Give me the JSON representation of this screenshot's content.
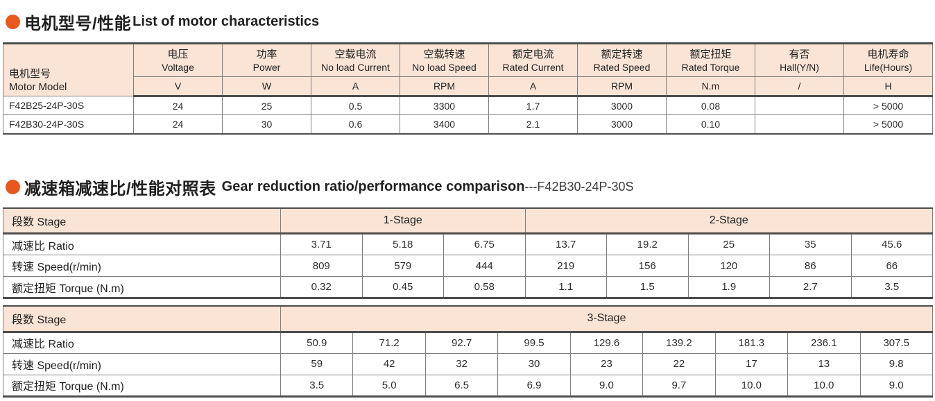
{
  "colors": {
    "accent": "#e8581e",
    "table_header_bg": "#fae4d6",
    "border_dark": "#4d4d4d",
    "border_light": "#7f7f7f"
  },
  "section1": {
    "title_cn": "电机型号/性能",
    "title_en": "List of motor characteristics",
    "table": {
      "row_header": {
        "cn": "电机型号",
        "en": "Motor Model"
      },
      "columns": [
        {
          "cn": "电压",
          "en": "Voltage",
          "unit": "V"
        },
        {
          "cn": "功率",
          "en": "Power",
          "unit": "W"
        },
        {
          "cn": "空载电流",
          "en": "No load Current",
          "unit": "A"
        },
        {
          "cn": "空载转速",
          "en": "No load Speed",
          "unit": "RPM"
        },
        {
          "cn": "额定电流",
          "en": "Rated Current",
          "unit": "A"
        },
        {
          "cn": "额定转速",
          "en": "Rated Speed",
          "unit": "RPM"
        },
        {
          "cn": "额定扭矩",
          "en": "Rated Torque",
          "unit": "N.m"
        },
        {
          "cn": "有否",
          "en": "Hall(Y/N)",
          "unit": "/"
        },
        {
          "cn": "电机寿命",
          "en": "Life(Hours)",
          "unit": "H"
        }
      ],
      "rows": [
        {
          "model": "F42B25-24P-30S",
          "values": [
            "24",
            "25",
            "0.5",
            "3300",
            "1.7",
            "3000",
            "0.08",
            "",
            "> 5000"
          ]
        },
        {
          "model": "F42B30-24P-30S",
          "values": [
            "24",
            "30",
            "0.6",
            "3400",
            "2.1",
            "3000",
            "0.10",
            "",
            "> 5000"
          ]
        }
      ]
    }
  },
  "section2": {
    "title_cn": "减速箱减速比/性能对照表",
    "title_en": "Gear reduction ratio/performance comparison",
    "title_suffix": "---F42B30-24P-30S",
    "tables": [
      {
        "stage_label": "段数 Stage",
        "groups": [
          {
            "label": "1-Stage",
            "span": 3
          },
          {
            "label": "2-Stage",
            "span": 5
          }
        ],
        "rows": [
          {
            "label": "减速比 Ratio",
            "values": [
              "3.71",
              "5.18",
              "6.75",
              "13.7",
              "19.2",
              "25",
              "35",
              "45.6"
            ]
          },
          {
            "label": "转速 Speed(r/min)",
            "values": [
              "809",
              "579",
              "444",
              "219",
              "156",
              "120",
              "86",
              "66"
            ]
          },
          {
            "label": "额定扭矩 Torque (N.m)",
            "values": [
              "0.32",
              "0.45",
              "0.58",
              "1.1",
              "1.5",
              "1.9",
              "2.7",
              "3.5"
            ]
          }
        ]
      },
      {
        "stage_label": "段数 Stage",
        "groups": [
          {
            "label": "3-Stage",
            "span": 9
          }
        ],
        "rows": [
          {
            "label": "减速比 Ratio",
            "values": [
              "50.9",
              "71.2",
              "92.7",
              "99.5",
              "129.6",
              "139.2",
              "181.3",
              "236.1",
              "307.5"
            ]
          },
          {
            "label": "转速 Speed(r/min)",
            "values": [
              "59",
              "42",
              "32",
              "30",
              "23",
              "22",
              "17",
              "13",
              "9.8"
            ]
          },
          {
            "label": "额定扭矩 Torque (N.m)",
            "values": [
              "3.5",
              "5.0",
              "6.5",
              "6.9",
              "9.0",
              "9.7",
              "10.0",
              "10.0",
              "9.0"
            ]
          }
        ]
      }
    ]
  }
}
